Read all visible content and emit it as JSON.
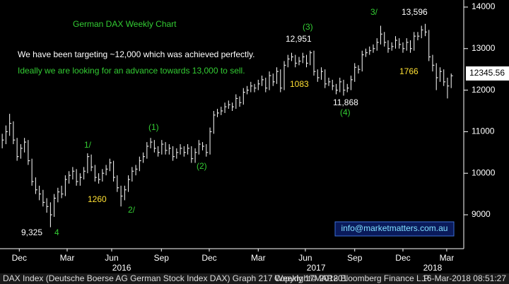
{
  "chart_data": {
    "type": "ohlc",
    "title": "German DAX Weekly Chart",
    "notes": [
      "We have been targeting ~12,000 which was achieved perfectly.",
      "Ideally we are looking for an advance towards 13,000 to sell."
    ],
    "annotations": [
      "9,325",
      "4",
      "1/",
      "1260",
      "2/",
      "(1)",
      "(2)",
      "1083",
      "12,951",
      "(3)",
      "11,868",
      "(4)",
      "3/",
      "13,596",
      "1766"
    ],
    "last_price": "12345.56",
    "contact": "info@marketmatters.com.au",
    "footer": [
      "DAX Index (Deutsche Boerse AG German Stock Index DAX) Graph 217  Weekly 17MAR201",
      "Copyright© 2018 Bloomberg Finance L.P.",
      "16-Mar-2018 08:51:27"
    ],
    "color": "#ffffff",
    "high": [
      10950,
      11150,
      11430,
      11250,
      10850,
      10700,
      10850,
      10800,
      10350,
      9900,
      9700,
      9600,
      9400,
      9300,
      9500,
      9650,
      9700,
      9950,
      10050,
      10150,
      10100,
      10000,
      10150,
      10480,
      10450,
      10200,
      10000,
      10100,
      10200,
      10350,
      10300,
      9950,
      9700,
      9700,
      9950,
      10150,
      10200,
      10400,
      10500,
      10750,
      10850,
      10800,
      10650,
      10800,
      10750,
      10700,
      10650,
      10600,
      10700,
      10650,
      10700,
      10650,
      10600,
      10800,
      10750,
      10700,
      11100,
      11500,
      11550,
      11600,
      11700,
      11750,
      11700,
      11900,
      11850,
      12050,
      12100,
      12200,
      12150,
      12250,
      12350,
      12300,
      12450,
      12400,
      12550,
      12500,
      12700,
      12850,
      12900,
      12850,
      12800,
      12900,
      12850,
      12951,
      12950,
      12500,
      12550,
      12500,
      12300,
      12250,
      12150,
      12300,
      12250,
      12150,
      12350,
      12650,
      12600,
      12950,
      13000,
      13050,
      13100,
      13250,
      13550,
      13400,
      13200,
      13150,
      13300,
      13250,
      13150,
      13250,
      13200,
      13400,
      13400,
      13550,
      13596,
      13450,
      12850,
      12650,
      12550,
      12500,
      12300,
      12400
    ],
    "low": [
      10600,
      10700,
      10900,
      10700,
      10300,
      10350,
      10500,
      10200,
      9700,
      9500,
      9350,
      9200,
      9050,
      8700,
      8950,
      9300,
      9400,
      9450,
      9750,
      9850,
      9700,
      9700,
      9850,
      10000,
      10050,
      9800,
      9750,
      9800,
      9950,
      10050,
      9800,
      9550,
      9200,
      9350,
      9550,
      9800,
      9950,
      10050,
      10250,
      10350,
      10600,
      10500,
      10400,
      10450,
      10450,
      10450,
      10300,
      10350,
      10450,
      10400,
      10450,
      10250,
      10250,
      10450,
      10550,
      10400,
      10450,
      10950,
      11350,
      11400,
      11450,
      11550,
      11500,
      11550,
      11600,
      11650,
      11900,
      11950,
      11950,
      12000,
      12100,
      11950,
      12000,
      12100,
      12150,
      11950,
      12000,
      12550,
      12700,
      12550,
      12600,
      12650,
      12550,
      12600,
      12350,
      12200,
      12250,
      12050,
      12100,
      12000,
      11900,
      11950,
      11868,
      11950,
      12000,
      12200,
      12400,
      12450,
      12800,
      12850,
      12900,
      12950,
      13100,
      13050,
      12900,
      12950,
      13000,
      13000,
      12900,
      12950,
      12900,
      12950,
      13200,
      13250,
      13300,
      12700,
      12450,
      12000,
      12200,
      12100,
      11800,
      12050
    ],
    "close": [
      10800,
      11000,
      11200,
      10800,
      10400,
      10600,
      10750,
      10300,
      9800,
      9600,
      9500,
      9300,
      9200,
      9000,
      9400,
      9550,
      9500,
      9850,
      9950,
      10050,
      9800,
      9900,
      10050,
      10400,
      10150,
      9900,
      9850,
      10000,
      10100,
      10250,
      9900,
      9650,
      9450,
      9600,
      9850,
      10050,
      10100,
      10300,
      10400,
      10650,
      10750,
      10600,
      10500,
      10700,
      10550,
      10600,
      10400,
      10500,
      10600,
      10500,
      10600,
      10350,
      10500,
      10700,
      10650,
      10500,
      11000,
      11400,
      11450,
      11500,
      11600,
      11650,
      11600,
      11800,
      11700,
      11950,
      12000,
      12100,
      12050,
      12150,
      12250,
      12050,
      12350,
      12200,
      12450,
      12050,
      12600,
      12750,
      12800,
      12650,
      12700,
      12800,
      12650,
      12900,
      12450,
      12300,
      12450,
      12150,
      12200,
      12100,
      12000,
      12200,
      12000,
      12050,
      12250,
      12550,
      12500,
      12850,
      12900,
      12950,
      13000,
      13150,
      13350,
      13150,
      13000,
      13050,
      13200,
      13100,
      13000,
      13150,
      13000,
      13300,
      13300,
      13450,
      13400,
      12800,
      12600,
      12300,
      12450,
      12200,
      12100,
      12346
    ],
    "xlim": [
      -0.6,
      124.2
    ],
    "xticks": [
      {
        "value": 4.6,
        "label": "Dec"
      },
      {
        "value": 17.5,
        "label": "Mar"
      },
      {
        "value": 29.5,
        "label": "Jun"
      },
      {
        "value": 42.9,
        "label": "Sep"
      },
      {
        "value": 55.8,
        "label": "Dec"
      },
      {
        "value": 69,
        "label": "Mar"
      },
      {
        "value": 81.7,
        "label": "Jun"
      },
      {
        "value": 95,
        "label": "Sep"
      },
      {
        "value": 108,
        "label": "Dec"
      },
      {
        "value": 119.8,
        "label": "Mar"
      }
    ],
    "year_ticks": [
      {
        "value": 32.2,
        "label": "2016"
      },
      {
        "value": 84.6,
        "label": "2017"
      },
      {
        "value": 116,
        "label": "2018"
      }
    ],
    "ylim": [
      8184,
      14170
    ],
    "yticks": [
      9000,
      10000,
      11000,
      12000,
      13000,
      14000
    ]
  }
}
